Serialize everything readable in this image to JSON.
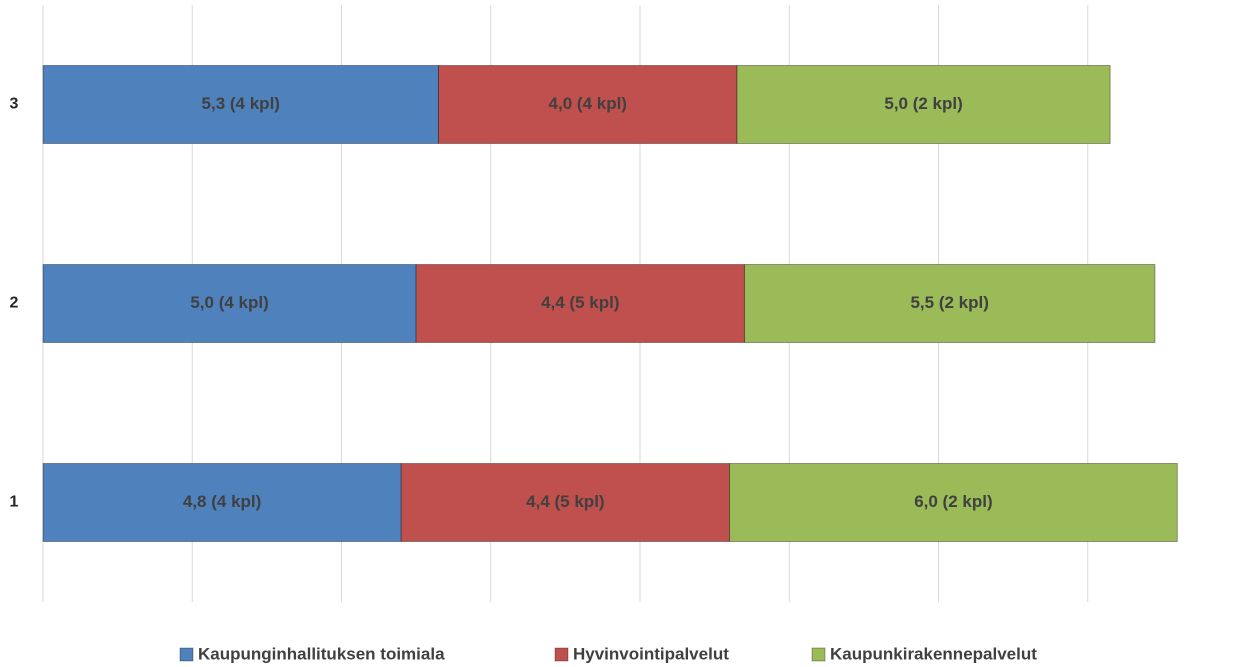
{
  "chart_data": {
    "type": "stacked-barh",
    "categories": [
      "1",
      "2",
      "3"
    ],
    "series": [
      {
        "name": "Kaupunginhallituksen toimiala",
        "color": "#4f81bd",
        "values": [
          4.8,
          5.0,
          5.3
        ],
        "value_labels": [
          "4,8 (4 kpl)",
          "5,0 (4 kpl)",
          "5,3 (4 kpl)"
        ]
      },
      {
        "name": "Hyvinvointipalvelut",
        "color": "#c0504d",
        "values": [
          4.4,
          4.4,
          4.0
        ],
        "value_labels": [
          "4,4 (5 kpl)",
          "4,4 (5 kpl)",
          "4,0 (4 kpl)"
        ]
      },
      {
        "name": "Kaupunkirakennepalvelut",
        "color": "#9bbb59",
        "values": [
          6.0,
          5.5,
          5.0
        ],
        "value_labels": [
          "6,0 (2 kpl)",
          "5,5 (2 kpl)",
          "5,0 (2 kpl)"
        ]
      }
    ],
    "xlim": [
      0,
      16
    ],
    "xticks": [
      0,
      2,
      4,
      6,
      8,
      10,
      12,
      14
    ],
    "grid": true,
    "legend": "bottom"
  }
}
